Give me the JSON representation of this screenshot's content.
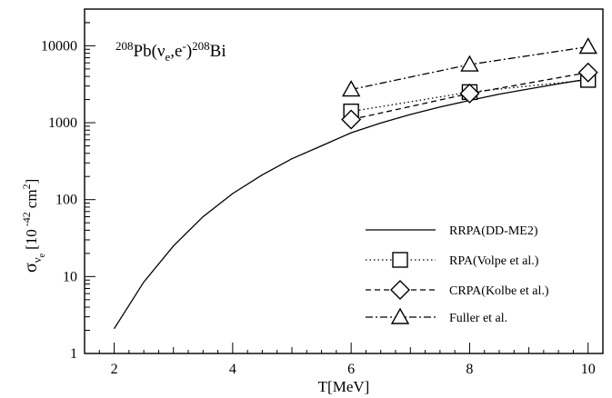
{
  "chart_data": {
    "type": "line",
    "xlabel": "T[MeV]",
    "ylabel": {
      "sigma": "σ",
      "sub_nu": "ν",
      "sub_e": "e",
      "unit_open": "[10",
      "exp": "-42",
      "unit_cm": "cm",
      "unit_pow": "2",
      "unit_close": "]"
    },
    "xlim": [
      1.5,
      10.25
    ],
    "ylim": [
      1,
      30000
    ],
    "yscale": "log",
    "x_ticks": [
      2,
      4,
      6,
      8,
      10
    ],
    "x_tick_labels": [
      "2",
      "4",
      "6",
      "8",
      "10"
    ],
    "y_ticks": [
      1,
      10,
      100,
      1000,
      10000
    ],
    "y_tick_labels": [
      "1",
      "10",
      "100",
      "1000",
      "10000"
    ],
    "legend_position": "bottom-right",
    "annotation": {
      "sup1": "208",
      "t1": "Pb(",
      "nu": "ν",
      "sub_e": "e",
      "t2": ",e",
      "minus": "-",
      "t3": ")",
      "sup2": "208",
      "t4": "Bi"
    },
    "series": [
      {
        "name": "RRPA(DD-ME2)",
        "style": "solid",
        "marker": "none",
        "x": [
          2.0,
          2.5,
          3.0,
          3.5,
          4.0,
          4.5,
          5.0,
          5.5,
          6.0,
          6.5,
          7.0,
          7.5,
          8.0,
          8.5,
          9.0,
          9.5,
          10.0
        ],
        "y": [
          2.1,
          8.5,
          25,
          60,
          120,
          210,
          340,
          500,
          740,
          990,
          1280,
          1600,
          1950,
          2350,
          2750,
          3200,
          3700
        ]
      },
      {
        "name": "RPA(Volpe et al.)",
        "style": "dotted",
        "marker": "square",
        "x": [
          6,
          8,
          10
        ],
        "y": [
          1400,
          2500,
          3600
        ]
      },
      {
        "name": "CRPA(Kolbe et al.)",
        "style": "dashed",
        "marker": "diamond",
        "x": [
          6,
          8,
          10
        ],
        "y": [
          1100,
          2400,
          4500
        ]
      },
      {
        "name": "Fuller et al.",
        "style": "dashdot",
        "marker": "triangle",
        "x": [
          6,
          8,
          10
        ],
        "y": [
          2700,
          5700,
          9700
        ]
      }
    ]
  }
}
